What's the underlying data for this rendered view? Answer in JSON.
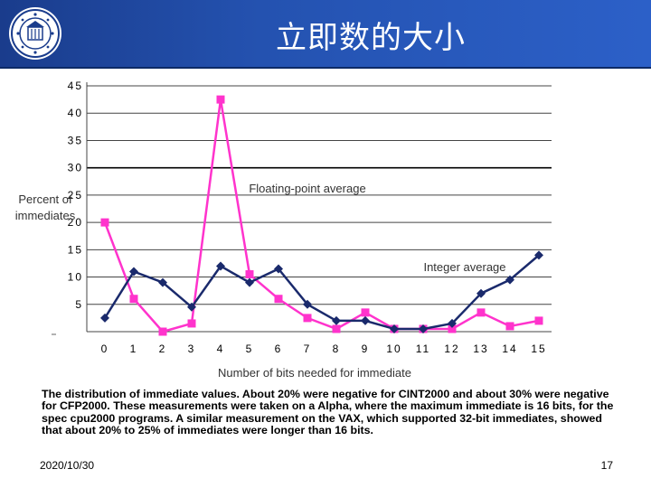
{
  "header": {
    "title": "立即数的大小"
  },
  "chart_data": {
    "type": "line",
    "title": "",
    "xlabel": "Number of bits needed for immediate",
    "ylabel": "Percent of immediates",
    "ylim": [
      0,
      45
    ],
    "y_ticks": [
      "45",
      "40",
      "35",
      "30",
      "25",
      "20",
      "15",
      "10",
      "5",
      ""
    ],
    "y_tick_values": [
      45,
      40,
      35,
      30,
      25,
      20,
      15,
      10,
      5,
      0
    ],
    "x": [
      0,
      1,
      2,
      3,
      4,
      5,
      6,
      7,
      8,
      9,
      10,
      11,
      12,
      13,
      14,
      15
    ],
    "x_labels": [
      "0",
      "1",
      "2",
      "3",
      "4",
      "5",
      "6",
      "7",
      "8",
      "9",
      "10",
      "11",
      "12",
      "13",
      "14",
      "15"
    ],
    "grid": "horizontal",
    "series": [
      {
        "name": "Floating-point average",
        "color": "#ff33cc",
        "marker": "square",
        "values": [
          20,
          6,
          0,
          1.5,
          42.5,
          10.5,
          6,
          2.5,
          0.5,
          3.5,
          0.5,
          0.5,
          0.5,
          3.5,
          1,
          2
        ]
      },
      {
        "name": "Integer average",
        "color": "#1a2a6c",
        "marker": "diamond",
        "values": [
          2.5,
          11,
          9,
          4.5,
          12,
          9,
          11.5,
          5,
          2,
          2,
          0.5,
          0.5,
          1.5,
          7,
          9.5,
          14
        ]
      }
    ]
  },
  "caption": "The distribution of immediate values. About 20% were negative for CINT2000 and about 30% were negative for CFP2000. These measurements were taken on a Alpha, where the maximum immediate is 16 bits, for the spec cpu2000 programs. A similar measurement on the VAX, which supported 32-bit immediates, showed that about 20% to 25% of immediates were longer than 16 bits.",
  "footer": {
    "date": "2020/10/30",
    "page": "17"
  },
  "colors": {
    "header_bg": "#2452b0",
    "title_text": "#ffffff"
  },
  "icons": {
    "logo": "university-seal-logo"
  }
}
